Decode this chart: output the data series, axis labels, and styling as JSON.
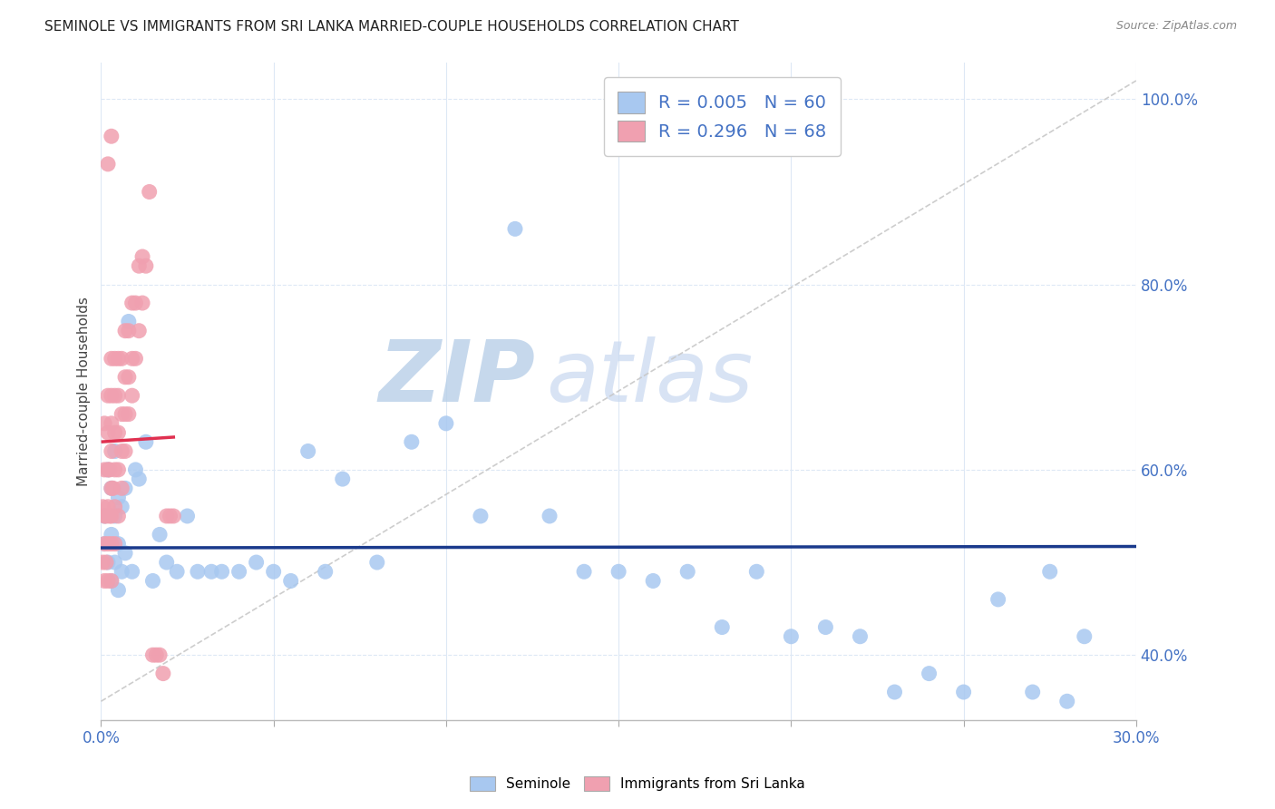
{
  "title": "SEMINOLE VS IMMIGRANTS FROM SRI LANKA MARRIED-COUPLE HOUSEHOLDS CORRELATION CHART",
  "source": "Source: ZipAtlas.com",
  "ylabel": "Married-couple Households",
  "legend1_label": "R = 0.005   N = 60",
  "legend2_label": "R = 0.296   N = 68",
  "legend_bottom1": "Seminole",
  "legend_bottom2": "Immigrants from Sri Lanka",
  "blue_color": "#a8c8f0",
  "pink_color": "#f0a0b0",
  "trend_blue_color": "#1a3a8c",
  "trend_pink_color": "#e03050",
  "diag_color": "#c8c8c8",
  "watermark": "ZIPatlas",
  "watermark_color": "#ccddf5",
  "xlim": [
    0.0,
    0.3
  ],
  "ylim": [
    0.33,
    1.04
  ],
  "blue_scatter_x": [
    0.001,
    0.001,
    0.002,
    0.002,
    0.003,
    0.003,
    0.003,
    0.004,
    0.004,
    0.004,
    0.005,
    0.005,
    0.005,
    0.006,
    0.006,
    0.007,
    0.007,
    0.008,
    0.009,
    0.01,
    0.011,
    0.013,
    0.015,
    0.017,
    0.019,
    0.022,
    0.025,
    0.028,
    0.032,
    0.035,
    0.04,
    0.045,
    0.05,
    0.055,
    0.06,
    0.065,
    0.07,
    0.08,
    0.09,
    0.1,
    0.11,
    0.12,
    0.13,
    0.14,
    0.15,
    0.16,
    0.17,
    0.18,
    0.19,
    0.2,
    0.21,
    0.22,
    0.23,
    0.24,
    0.25,
    0.26,
    0.27,
    0.275,
    0.28,
    0.285
  ],
  "blue_scatter_y": [
    0.52,
    0.55,
    0.5,
    0.6,
    0.48,
    0.53,
    0.58,
    0.5,
    0.55,
    0.62,
    0.47,
    0.52,
    0.57,
    0.49,
    0.56,
    0.51,
    0.58,
    0.76,
    0.49,
    0.6,
    0.59,
    0.63,
    0.48,
    0.53,
    0.5,
    0.49,
    0.55,
    0.49,
    0.49,
    0.49,
    0.49,
    0.5,
    0.49,
    0.48,
    0.62,
    0.49,
    0.59,
    0.5,
    0.63,
    0.65,
    0.55,
    0.86,
    0.55,
    0.49,
    0.49,
    0.48,
    0.49,
    0.43,
    0.49,
    0.42,
    0.43,
    0.42,
    0.36,
    0.38,
    0.36,
    0.46,
    0.36,
    0.49,
    0.35,
    0.42
  ],
  "pink_scatter_x": [
    0.0005,
    0.0005,
    0.001,
    0.001,
    0.001,
    0.001,
    0.001,
    0.0015,
    0.0015,
    0.002,
    0.002,
    0.002,
    0.002,
    0.002,
    0.002,
    0.0025,
    0.0025,
    0.003,
    0.003,
    0.003,
    0.003,
    0.003,
    0.003,
    0.003,
    0.003,
    0.0035,
    0.004,
    0.004,
    0.004,
    0.004,
    0.004,
    0.004,
    0.005,
    0.005,
    0.005,
    0.005,
    0.005,
    0.006,
    0.006,
    0.006,
    0.006,
    0.007,
    0.007,
    0.007,
    0.007,
    0.008,
    0.008,
    0.008,
    0.009,
    0.009,
    0.009,
    0.01,
    0.01,
    0.011,
    0.011,
    0.012,
    0.012,
    0.013,
    0.014,
    0.015,
    0.016,
    0.017,
    0.018,
    0.019,
    0.02,
    0.021,
    0.002,
    0.003
  ],
  "pink_scatter_y": [
    0.5,
    0.56,
    0.48,
    0.52,
    0.55,
    0.6,
    0.65,
    0.5,
    0.55,
    0.48,
    0.52,
    0.56,
    0.6,
    0.64,
    0.68,
    0.55,
    0.6,
    0.48,
    0.52,
    0.55,
    0.58,
    0.62,
    0.65,
    0.68,
    0.72,
    0.58,
    0.52,
    0.56,
    0.6,
    0.64,
    0.68,
    0.72,
    0.55,
    0.6,
    0.64,
    0.68,
    0.72,
    0.58,
    0.62,
    0.66,
    0.72,
    0.62,
    0.66,
    0.7,
    0.75,
    0.66,
    0.7,
    0.75,
    0.68,
    0.72,
    0.78,
    0.72,
    0.78,
    0.75,
    0.82,
    0.78,
    0.83,
    0.82,
    0.9,
    0.4,
    0.4,
    0.4,
    0.38,
    0.55,
    0.55,
    0.55,
    0.93,
    0.96
  ]
}
